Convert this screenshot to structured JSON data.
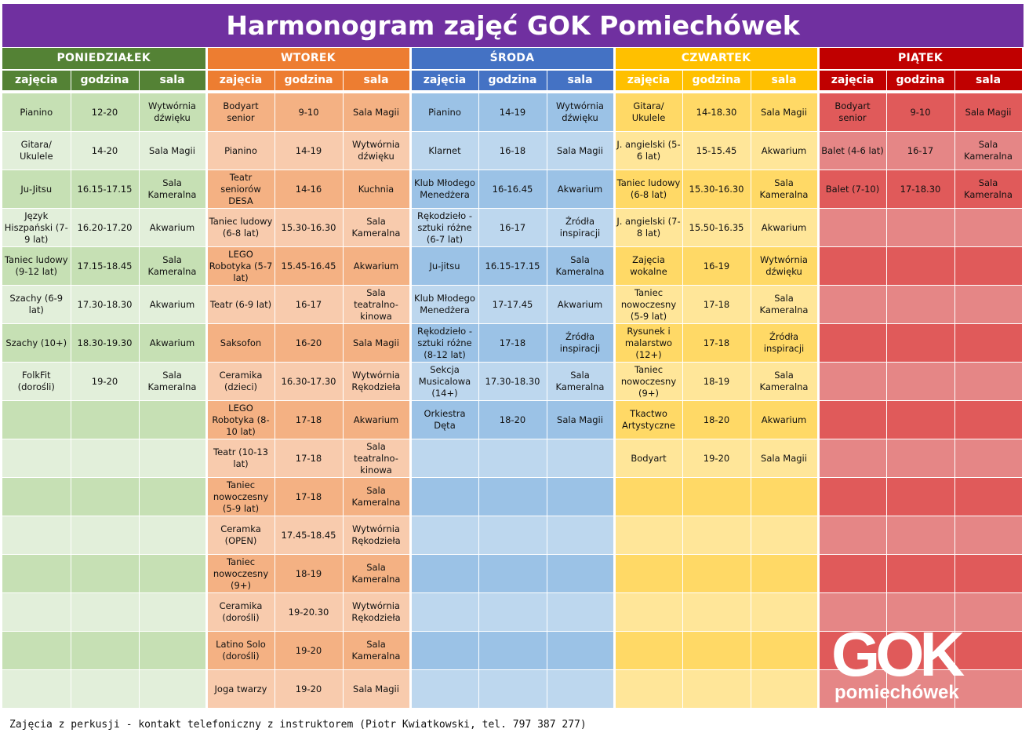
{
  "title": "Harmonogram zajęć GOK Pomiechówek",
  "col_headers": [
    "zajęcia",
    "godzina",
    "sala"
  ],
  "days": [
    {
      "name": "PONIEDZIAŁEK",
      "color": "#548235",
      "sub_color": "#548235",
      "cells_odd": "#c6e0b4",
      "cells_even": "#e2efda",
      "rows": [
        [
          "Pianino",
          "12-20",
          "Wytwórnia dźwięku"
        ],
        [
          "Gitara/ Ukulele",
          "14-20",
          "Sala Magii"
        ],
        [
          "Ju-Jitsu",
          "16.15-17.15",
          "Sala Kameralna"
        ],
        [
          "Język Hiszpański (7-9 lat)",
          "16.20-17.20",
          "Akwarium"
        ],
        [
          "Taniec ludowy (9-12 lat)",
          "17.15-18.45",
          "Sala Kameralna"
        ],
        [
          "Szachy (6-9 lat)",
          "17.30-18.30",
          "Akwarium"
        ],
        [
          "Szachy (10+)",
          "18.30-19.30",
          "Akwarium"
        ],
        [
          "FolkFit (dorośli)",
          "19-20",
          "Sala Kameralna"
        ]
      ]
    },
    {
      "name": "WTOREK",
      "color": "#ed7d31",
      "sub_color": "#ed7d31",
      "cells_odd": "#f4b183",
      "cells_even": "#f8cbad",
      "rows": [
        [
          "Bodyart senior",
          "9-10",
          "Sala Magii"
        ],
        [
          "Pianino",
          "14-19",
          "Wytwórnia dźwięku"
        ],
        [
          "Teatr seniorów DESA",
          "14-16",
          "Kuchnia"
        ],
        [
          "Taniec ludowy (6-8 lat)",
          "15.30-16.30",
          "Sala Kameralna"
        ],
        [
          "LEGO Robotyka (5-7 lat)",
          "15.45-16.45",
          "Akwarium"
        ],
        [
          "Teatr (6-9 lat)",
          "16-17",
          "Sala teatralno-kinowa"
        ],
        [
          "Saksofon",
          "16-20",
          "Sala Magii"
        ],
        [
          "Ceramika (dzieci)",
          "16.30-17.30",
          "Wytwórnia Rękodzieła"
        ],
        [
          "LEGO Robotyka (8-10 lat)",
          "17-18",
          "Akwarium"
        ],
        [
          "Teatr (10-13 lat)",
          "17-18",
          "Sala teatralno-kinowa"
        ],
        [
          "Taniec nowoczesny (5-9 lat)",
          "17-18",
          "Sala Kameralna"
        ],
        [
          "Ceramka (OPEN)",
          "17.45-18.45",
          "Wytwórnia Rękodzieła"
        ],
        [
          "Taniec nowoczesny (9+)",
          "18-19",
          "Sala Kameralna"
        ],
        [
          "Ceramika (dorośli)",
          "19-20.30",
          "Wytwórnia Rękodzieła"
        ],
        [
          "Latino Solo (dorośli)",
          "19-20",
          "Sala Kameralna"
        ],
        [
          "Joga twarzy",
          "19-20",
          "Sala Magii"
        ]
      ]
    },
    {
      "name": "ŚRODA",
      "color": "#4472c4",
      "sub_color": "#4472c4",
      "cells_odd": "#9bc2e6",
      "cells_even": "#bdd7ee",
      "rows": [
        [
          "Pianino",
          "14-19",
          "Wytwórnia dźwięku"
        ],
        [
          "Klarnet",
          "16-18",
          "Sala Magii"
        ],
        [
          "Klub Młodego Menedżera",
          "16-16.45",
          "Akwarium"
        ],
        [
          "Rękodzieło - sztuki różne (6-7 lat)",
          "16-17",
          "Źródła inspiracji"
        ],
        [
          "Ju-jitsu",
          "16.15-17.15",
          "Sala Kameralna"
        ],
        [
          "Klub Młodego Menedżera",
          "17-17.45",
          "Akwarium"
        ],
        [
          "Rękodzieło - sztuki różne (8-12 lat)",
          "17-18",
          "Źródła inspiracji"
        ],
        [
          "Sekcja Musicalowa (14+)",
          "17.30-18.30",
          "Sala Kameralna"
        ],
        [
          "Orkiestra Dęta",
          "18-20",
          "Sala Magii"
        ]
      ]
    },
    {
      "name": "CZWARTEK",
      "color": "#ffc000",
      "sub_color": "#ffc000",
      "cells_odd": "#ffd966",
      "cells_even": "#ffe699",
      "rows": [
        [
          "Gitara/ Ukulele",
          "14-18.30",
          "Sala Magii"
        ],
        [
          "J. angielski (5-6 lat)",
          "15-15.45",
          "Akwarium"
        ],
        [
          "Taniec ludowy (6-8 lat)",
          "15.30-16.30",
          "Sala Kameralna"
        ],
        [
          "J. angielski (7-8 lat)",
          "15.50-16.35",
          "Akwarium"
        ],
        [
          "Zajęcia wokalne",
          "16-19",
          "Wytwórnia dźwięku"
        ],
        [
          "Taniec nowoczesny (5-9 lat)",
          "17-18",
          "Sala Kameralna"
        ],
        [
          "Rysunek i malarstwo (12+)",
          "17-18",
          "Źródła inspiracji"
        ],
        [
          "Taniec nowoczesny (9+)",
          "18-19",
          "Sala Kameralna"
        ],
        [
          "Tkactwo Artystyczne",
          "18-20",
          "Akwarium"
        ],
        [
          "Bodyart",
          "19-20",
          "Sala Magii"
        ]
      ]
    },
    {
      "name": "PIĄTEK",
      "color": "#c00000",
      "sub_color": "#c00000",
      "cells_odd": "#e05a5a",
      "cells_even": "#e58686",
      "rows": [
        [
          "Bodyart senior",
          "9-10",
          "Sala Magii"
        ],
        [
          "Balet (4-6 lat)",
          "16-17",
          "Sala Kameralna"
        ],
        [
          "Balet (7-10)",
          "17-18.30",
          "Sala Kameralna"
        ]
      ]
    }
  ],
  "total_rows": 16,
  "logo": {
    "top": "GOK",
    "bottom": "pomiechówek",
    "color": "#ffffff",
    "icon": "heart-pin-icon"
  },
  "footer": "Zajęcia z perkusji - kontakt telefoniczny z instruktorem (Piotr Kwiatkowski, tel. 797 387 277)"
}
